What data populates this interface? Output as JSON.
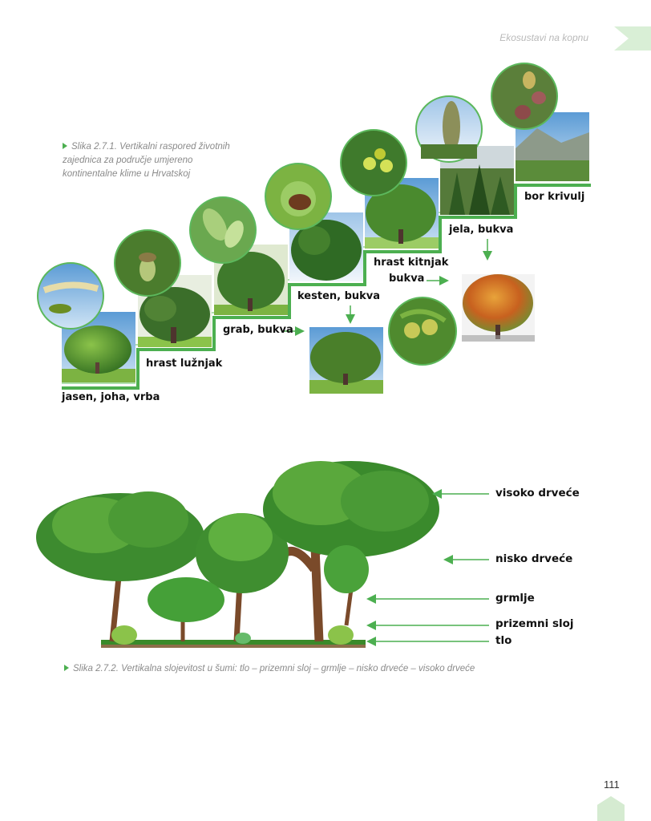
{
  "header": {
    "section_title": "Ekosustavi na kopnu"
  },
  "figure1": {
    "caption_lines": [
      "Slika 2.7.1. Vertikalni raspored životnih",
      "zajednica za područje umjereno",
      "kontinentalne klime u Hrvatskoj"
    ],
    "zones": [
      {
        "label": "jasen, joha, vrba"
      },
      {
        "label": "hrast lužnjak"
      },
      {
        "label": "grab, bukva"
      },
      {
        "label": "kesten, bukva"
      },
      {
        "label": "hrast kitnjak"
      },
      {
        "label": "bukva"
      },
      {
        "label": "jela, bukva"
      },
      {
        "label": "bor krivulj"
      }
    ],
    "accent_color": "#4caf50"
  },
  "figure2": {
    "caption": "Slika 2.7.2. Vertikalna slojevitost u šumi: tlo – prizemni sloj – grmlje – nisko drveće – visoko drveće",
    "layers": [
      {
        "label": "visoko drveće"
      },
      {
        "label": "nisko drveće"
      },
      {
        "label": "grmlje"
      },
      {
        "label": "prizemni sloj"
      },
      {
        "label": "tlo"
      }
    ]
  },
  "footer": {
    "page_number": "111"
  }
}
